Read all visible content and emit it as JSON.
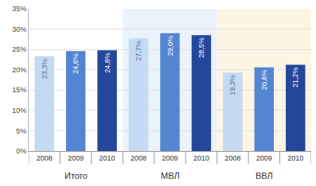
{
  "chart_data": {
    "type": "bar",
    "groups": [
      "Итого",
      "МВЛ",
      "ВВЛ"
    ],
    "categories": [
      "2008",
      "2009",
      "2010",
      "2008",
      "2009",
      "2010",
      "2008",
      "2009",
      "2010"
    ],
    "values": [
      23.3,
      24.6,
      24.8,
      27.7,
      29.0,
      28.5,
      19.3,
      20.6,
      21.2
    ],
    "value_labels": [
      "23,3%",
      "24,6%",
      "24,8%",
      "27,7%",
      "29,0%",
      "28,5%",
      "19,3%",
      "20,6%",
      "21,2%"
    ],
    "colors": [
      "#c3daf2",
      "#5385d2",
      "#24479c",
      "#c3daf2",
      "#5385d2",
      "#24479c",
      "#c3daf2",
      "#5385d2",
      "#24479c"
    ],
    "ylim": [
      0,
      35
    ],
    "yticks": [
      {
        "value": 0,
        "label": "0%"
      },
      {
        "value": 5,
        "label": "5%"
      },
      {
        "value": 10,
        "label": "10%"
      },
      {
        "value": 15,
        "label": "15%"
      },
      {
        "value": 20,
        "label": "20%"
      },
      {
        "value": 25,
        "label": "25%"
      },
      {
        "value": 30,
        "label": "30%"
      },
      {
        "value": 35,
        "label": "35%"
      }
    ],
    "grid": true,
    "data_labels": true
  }
}
